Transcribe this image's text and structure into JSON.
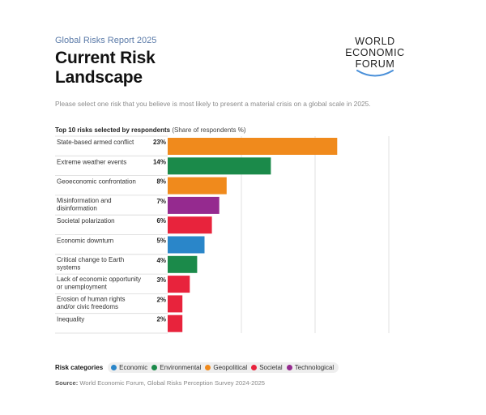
{
  "header": {
    "report_label": "Global Risks Report 2025",
    "title_line1": "Current Risk",
    "title_line2": "Landscape"
  },
  "logo": {
    "line1": "WORLD",
    "line2": "ECONOMIC",
    "line3": "FORUM",
    "arc_color": "#4a90d9"
  },
  "question": "Please select one risk that you believe is most likely to present a material crisis on a global scale in 2025.",
  "chart_heading": {
    "title": "Top 10 risks selected by respondents",
    "subtitle": "(Share of respondents %)"
  },
  "category_colors": {
    "Economic": "#2a86c9",
    "Environmental": "#1b8a4a",
    "Geopolitical": "#f08a1c",
    "Societal": "#e8233c",
    "Technological": "#952a8f"
  },
  "chart_data": {
    "type": "bar",
    "orientation": "horizontal",
    "title": "Top 10 risks selected by respondents",
    "subtitle": "(Share of respondents %)",
    "xlim": [
      0,
      30
    ],
    "grid": true,
    "categories": [
      "State-based armed conflict",
      "Extreme weather events",
      "Geoeconomic confrontation",
      "Misinformation and disinformation",
      "Societal polarization",
      "Economic downturn",
      "Critical change to Earth systems",
      "Lack of economic opportunity or unemployment",
      "Erosion of human rights and/or civic freedoms",
      "Inequality"
    ],
    "label_lines": [
      [
        "State-based armed conflict"
      ],
      [
        "Extreme weather events"
      ],
      [
        "Geoeconomic confrontation"
      ],
      [
        "Misinformation and",
        "disinformation"
      ],
      [
        "Societal polarization"
      ],
      [
        "Economic downturn"
      ],
      [
        "Critical change to Earth",
        "systems"
      ],
      [
        "Lack of economic opportunity",
        "or unemployment"
      ],
      [
        "Erosion of human rights",
        "and/or civic freedoms"
      ],
      [
        "Inequality"
      ]
    ],
    "values": [
      23,
      14,
      8,
      7,
      6,
      5,
      4,
      3,
      2,
      2
    ],
    "value_labels": [
      "23%",
      "14%",
      "8%",
      "7%",
      "6%",
      "5%",
      "4%",
      "3%",
      "2%",
      "2%"
    ],
    "risk_category": [
      "Geopolitical",
      "Environmental",
      "Geopolitical",
      "Technological",
      "Societal",
      "Economic",
      "Environmental",
      "Societal",
      "Societal",
      "Societal"
    ],
    "legend": {
      "title": "Risk categories",
      "items": [
        "Economic",
        "Environmental",
        "Geopolitical",
        "Societal",
        "Technological"
      ],
      "placement": "bottom-left"
    }
  },
  "source": {
    "label": "Source:",
    "text": "World Economic Forum, Global Risks Perception Survey 2024-2025"
  }
}
